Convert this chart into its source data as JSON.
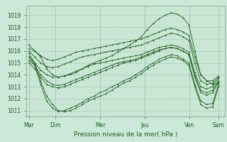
{
  "title": "",
  "xlabel": "Pression niveau de la mer( hPa )",
  "ylabel": "",
  "bg_color": "#cce8d8",
  "grid_color_major": "#aaccb8",
  "grid_color_minor": "#bbddc8",
  "line_color": "#1a5e1a",
  "ylim": [
    1010.5,
    1019.8
  ],
  "xlim": [
    -3,
    220
  ],
  "day_labels": [
    "Mar",
    "Dim",
    "Mer",
    "Jeu",
    "Ven",
    "Sam"
  ],
  "day_positions": [
    0,
    30,
    80,
    130,
    180,
    213
  ],
  "yticks": [
    1011,
    1012,
    1013,
    1014,
    1015,
    1016,
    1017,
    1018,
    1019
  ],
  "lines": [
    [
      1016.2,
      1016.0,
      1015.5,
      1014.5,
      1014.0,
      1013.8,
      1013.9,
      1014.0,
      1014.2,
      1014.5,
      1014.8,
      1015.0,
      1015.2,
      1015.4,
      1015.6,
      1015.9,
      1016.2,
      1016.5,
      1016.8,
      1017.2,
      1017.8,
      1018.3,
      1018.7,
      1019.0,
      1019.2,
      1019.1,
      1018.8,
      1018.2,
      1016.0,
      1014.0,
      1013.5,
      1013.2,
      1013.3
    ],
    [
      1015.8,
      1015.0,
      1013.5,
      1012.2,
      1011.5,
      1011.0,
      1010.9,
      1011.0,
      1011.2,
      1011.5,
      1011.8,
      1012.0,
      1012.2,
      1012.4,
      1012.7,
      1013.0,
      1013.3,
      1013.5,
      1013.8,
      1014.1,
      1014.5,
      1014.8,
      1015.1,
      1015.3,
      1015.5,
      1015.4,
      1015.2,
      1014.8,
      1013.0,
      1011.5,
      1011.2,
      1011.3,
      1013.0
    ],
    [
      1015.5,
      1014.8,
      1013.2,
      1011.8,
      1011.2,
      1010.9,
      1011.0,
      1011.2,
      1011.4,
      1011.7,
      1012.0,
      1012.2,
      1012.5,
      1012.7,
      1013.0,
      1013.2,
      1013.5,
      1013.7,
      1014.0,
      1014.3,
      1014.7,
      1015.0,
      1015.3,
      1015.5,
      1015.7,
      1015.6,
      1015.3,
      1015.0,
      1013.2,
      1011.8,
      1011.5,
      1011.6,
      1013.2
    ],
    [
      1015.0,
      1014.5,
      1013.8,
      1013.2,
      1013.0,
      1012.9,
      1013.0,
      1013.2,
      1013.4,
      1013.6,
      1013.8,
      1014.0,
      1014.2,
      1014.4,
      1014.6,
      1014.8,
      1015.0,
      1015.1,
      1015.2,
      1015.4,
      1015.6,
      1015.8,
      1016.0,
      1016.2,
      1016.3,
      1016.2,
      1016.0,
      1015.7,
      1013.8,
      1012.5,
      1012.3,
      1012.5,
      1013.4
    ],
    [
      1015.2,
      1014.8,
      1014.0,
      1013.5,
      1013.2,
      1013.1,
      1013.2,
      1013.4,
      1013.6,
      1013.8,
      1014.0,
      1014.2,
      1014.4,
      1014.6,
      1014.8,
      1015.0,
      1015.1,
      1015.2,
      1015.3,
      1015.5,
      1015.7,
      1015.9,
      1016.1,
      1016.2,
      1016.3,
      1016.2,
      1016.0,
      1015.7,
      1013.9,
      1012.7,
      1012.5,
      1012.7,
      1013.5
    ],
    [
      1015.5,
      1015.0,
      1014.4,
      1014.0,
      1013.8,
      1013.8,
      1013.9,
      1014.1,
      1014.3,
      1014.5,
      1014.7,
      1014.9,
      1015.0,
      1015.1,
      1015.2,
      1015.3,
      1015.4,
      1015.5,
      1015.6,
      1015.7,
      1015.9,
      1016.1,
      1016.3,
      1016.4,
      1016.5,
      1016.4,
      1016.2,
      1015.9,
      1014.2,
      1013.0,
      1012.8,
      1013.0,
      1013.7
    ],
    [
      1016.0,
      1015.5,
      1015.0,
      1014.7,
      1014.6,
      1014.7,
      1014.9,
      1015.1,
      1015.3,
      1015.5,
      1015.6,
      1015.7,
      1015.8,
      1015.9,
      1016.0,
      1016.1,
      1016.2,
      1016.3,
      1016.4,
      1016.5,
      1016.7,
      1016.9,
      1017.1,
      1017.3,
      1017.5,
      1017.4,
      1017.2,
      1016.9,
      1015.0,
      1013.5,
      1013.2,
      1013.3,
      1013.8
    ],
    [
      1016.5,
      1016.0,
      1015.6,
      1015.3,
      1015.2,
      1015.3,
      1015.5,
      1015.7,
      1015.9,
      1016.0,
      1016.1,
      1016.2,
      1016.3,
      1016.4,
      1016.5,
      1016.6,
      1016.7,
      1016.8,
      1016.9,
      1017.0,
      1017.2,
      1017.4,
      1017.6,
      1017.8,
      1017.9,
      1017.8,
      1017.6,
      1017.3,
      1015.5,
      1014.0,
      1013.5,
      1013.5,
      1013.9
    ]
  ]
}
